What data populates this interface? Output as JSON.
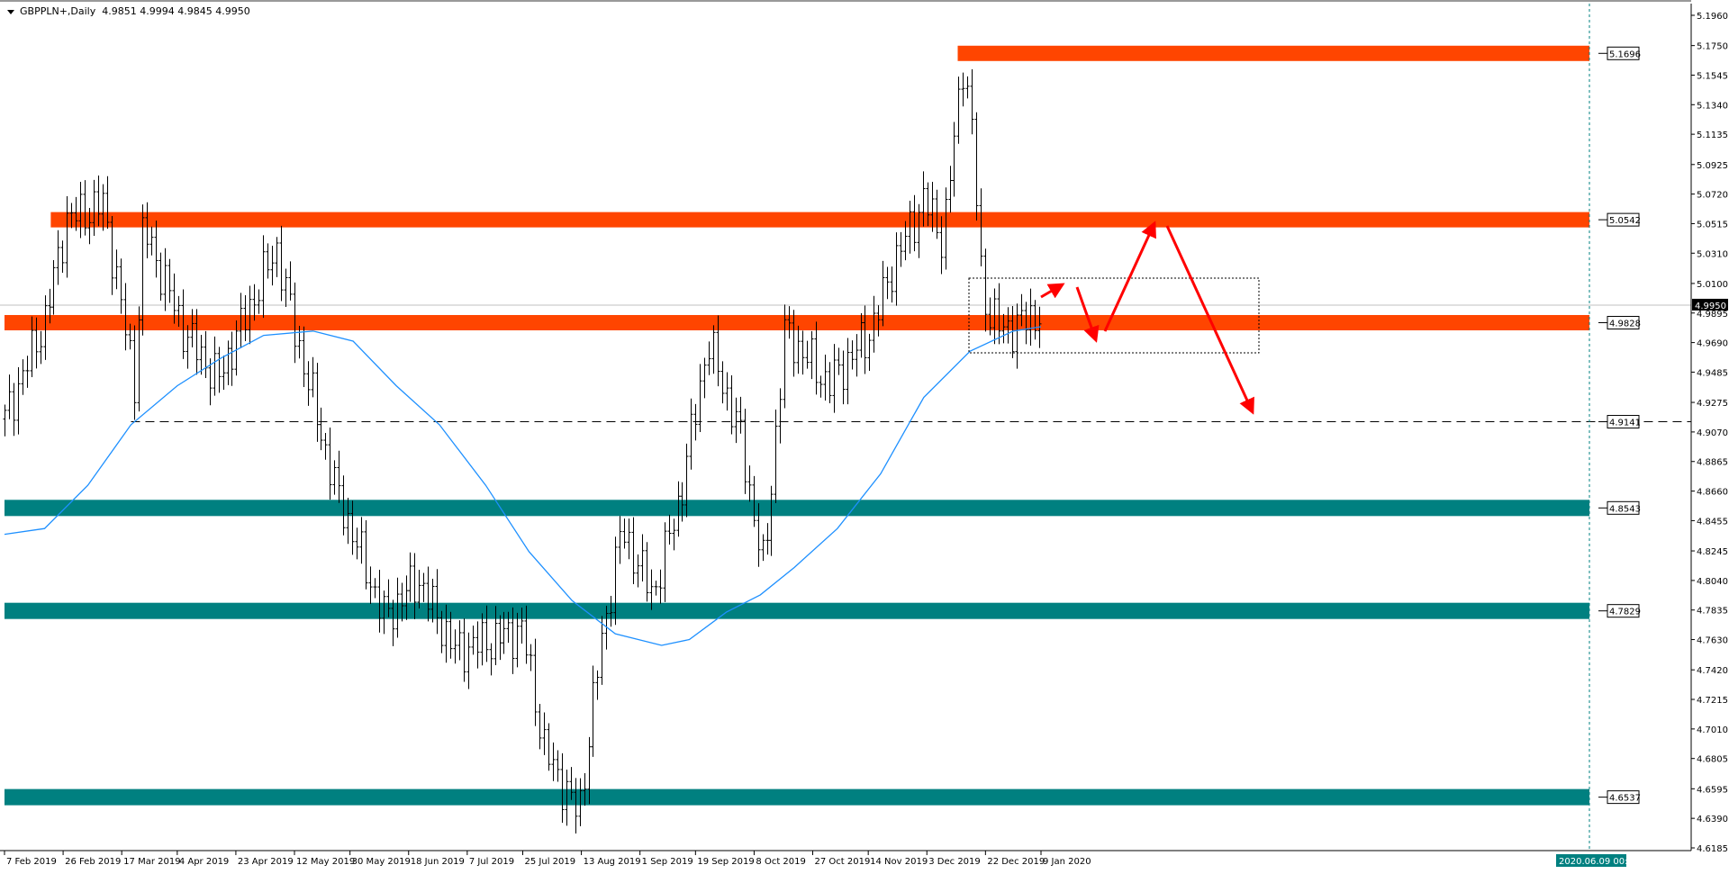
{
  "header": {
    "symbol_timeframe": "GBPPLN+,Daily",
    "ohlc": "4.9851 4.9994 4.9845 4.9950"
  },
  "colors": {
    "resistance_band": "#ff4500",
    "support_band": "#008080",
    "moving_average": "#1e90ff",
    "arrows": "#ff0000",
    "bars": "#000000",
    "time_marker": "#008080"
  },
  "time_marker_label": "2020.06.09 00:00",
  "chart_data": {
    "type": "ohlc",
    "symbol": "GBPPLN+",
    "timeframe": "Daily",
    "ylim": [
      4.6185,
      5.196
    ],
    "grid": false,
    "y_ticks": [
      "5.1960",
      "5.1750",
      "5.1545",
      "5.1340",
      "5.1135",
      "5.0925",
      "5.0720",
      "5.0515",
      "5.0310",
      "5.0100",
      "4.9895",
      "4.9690",
      "4.9485",
      "4.9275",
      "4.9070",
      "4.8865",
      "4.8660",
      "4.8455",
      "4.8245",
      "4.8040",
      "4.7835",
      "4.7630",
      "4.7420",
      "4.7215",
      "4.7010",
      "4.6805",
      "4.6595",
      "4.6390",
      "4.6185"
    ],
    "x_ticks": [
      {
        "date": "2019-02-07",
        "label": "7 Feb 2019"
      },
      {
        "date": "2019-02-26",
        "label": "26 Feb 2019"
      },
      {
        "date": "2019-03-17",
        "label": "17 Mar 2019"
      },
      {
        "date": "2019-04-04",
        "label": "4 Apr 2019"
      },
      {
        "date": "2019-04-23",
        "label": "23 Apr 2019"
      },
      {
        "date": "2019-05-12",
        "label": "12 May 2019"
      },
      {
        "date": "2019-05-30",
        "label": "30 May 2019"
      },
      {
        "date": "2019-06-18",
        "label": "18 Jun 2019"
      },
      {
        "date": "2019-07-07",
        "label": "7 Jul 2019"
      },
      {
        "date": "2019-07-25",
        "label": "25 Jul 2019"
      },
      {
        "date": "2019-08-13",
        "label": "13 Aug 2019"
      },
      {
        "date": "2019-09-01",
        "label": "1 Sep 2019"
      },
      {
        "date": "2019-09-19",
        "label": "19 Sep 2019"
      },
      {
        "date": "2019-10-08",
        "label": "8 Oct 2019"
      },
      {
        "date": "2019-10-27",
        "label": "27 Oct 2019"
      },
      {
        "date": "2019-11-14",
        "label": "14 Nov 2019"
      },
      {
        "date": "2019-12-03",
        "label": "3 Dec 2019"
      },
      {
        "date": "2019-12-22",
        "label": "22 Dec 2019"
      },
      {
        "date": "2020-01-09",
        "label": "9 Jan 2020"
      }
    ],
    "current_price": "4.9950",
    "price_path_approx": [
      [
        "2019-02-07",
        4.916
      ],
      [
        "2019-02-20",
        4.985
      ],
      [
        "2019-02-27",
        5.054
      ],
      [
        "2019-03-11",
        5.065
      ],
      [
        "2019-03-21",
        4.94
      ],
      [
        "2019-03-24",
        5.05
      ],
      [
        "2019-04-06",
        4.977
      ],
      [
        "2019-04-17",
        4.943
      ],
      [
        "2019-05-06",
        5.035
      ],
      [
        "2019-05-12",
        4.977
      ],
      [
        "2019-05-25",
        4.87
      ],
      [
        "2019-06-10",
        4.778
      ],
      [
        "2019-06-21",
        4.805
      ],
      [
        "2019-07-03",
        4.755
      ],
      [
        "2019-07-15",
        4.763
      ],
      [
        "2019-07-25",
        4.77
      ],
      [
        "2019-08-01",
        4.686
      ],
      [
        "2019-08-12",
        4.641
      ],
      [
        "2019-08-19",
        4.755
      ],
      [
        "2019-08-26",
        4.84
      ],
      [
        "2019-09-05",
        4.794
      ],
      [
        "2019-09-14",
        4.862
      ],
      [
        "2019-09-23",
        4.97
      ],
      [
        "2019-10-03",
        4.908
      ],
      [
        "2019-10-11",
        4.81
      ],
      [
        "2019-10-18",
        4.977
      ],
      [
        "2019-11-01",
        4.94
      ],
      [
        "2019-11-15",
        4.977
      ],
      [
        "2019-11-22",
        5.023
      ],
      [
        "2019-12-02",
        5.069
      ],
      [
        "2019-12-08",
        5.04
      ],
      [
        "2019-12-15",
        5.168
      ],
      [
        "2019-12-18",
        5.107
      ],
      [
        "2019-12-21",
        5.0
      ],
      [
        "2019-12-27",
        4.977
      ],
      [
        "2020-01-05",
        4.985
      ],
      [
        "2020-01-12",
        4.995
      ]
    ],
    "moving_average_approx": [
      [
        "2019-02-07",
        4.836
      ],
      [
        "2019-02-20",
        4.84
      ],
      [
        "2019-03-06",
        4.87
      ],
      [
        "2019-03-20",
        4.912
      ],
      [
        "2019-04-04",
        4.939
      ],
      [
        "2019-04-18",
        4.958
      ],
      [
        "2019-05-02",
        4.974
      ],
      [
        "2019-05-18",
        4.977
      ],
      [
        "2019-05-31",
        4.97
      ],
      [
        "2019-06-14",
        4.939
      ],
      [
        "2019-06-28",
        4.912
      ],
      [
        "2019-07-13",
        4.87
      ],
      [
        "2019-07-27",
        4.824
      ],
      [
        "2019-08-10",
        4.79
      ],
      [
        "2019-08-24",
        4.767
      ],
      [
        "2019-09-08",
        4.759
      ],
      [
        "2019-09-17",
        4.763
      ],
      [
        "2019-09-29",
        4.782
      ],
      [
        "2019-10-10",
        4.794
      ],
      [
        "2019-10-21",
        4.813
      ],
      [
        "2019-11-04",
        4.84
      ],
      [
        "2019-11-18",
        4.878
      ],
      [
        "2019-12-02",
        4.931
      ],
      [
        "2019-12-17",
        4.963
      ],
      [
        "2019-12-31",
        4.977
      ],
      [
        "2020-01-09",
        4.98
      ]
    ],
    "levels": [
      {
        "label": "5.1696",
        "price": 5.1696,
        "kind": "resistance",
        "start": "2019-12-13"
      },
      {
        "label": "5.0542",
        "price": 5.0542,
        "kind": "resistance",
        "start": "2019-02-22"
      },
      {
        "label": "4.9828",
        "price": 4.9828,
        "kind": "resistance",
        "start": "2019-02-07"
      },
      {
        "label": "4.9141",
        "price": 4.9141,
        "kind": "dashed",
        "start": "2019-03-20"
      },
      {
        "label": "4.8543",
        "price": 4.8543,
        "kind": "support",
        "start": "2019-02-07"
      },
      {
        "label": "4.7829",
        "price": 4.7829,
        "kind": "support",
        "start": "2019-02-07"
      },
      {
        "label": "4.6537",
        "price": 4.6537,
        "kind": "support",
        "start": "2019-02-07"
      }
    ]
  }
}
